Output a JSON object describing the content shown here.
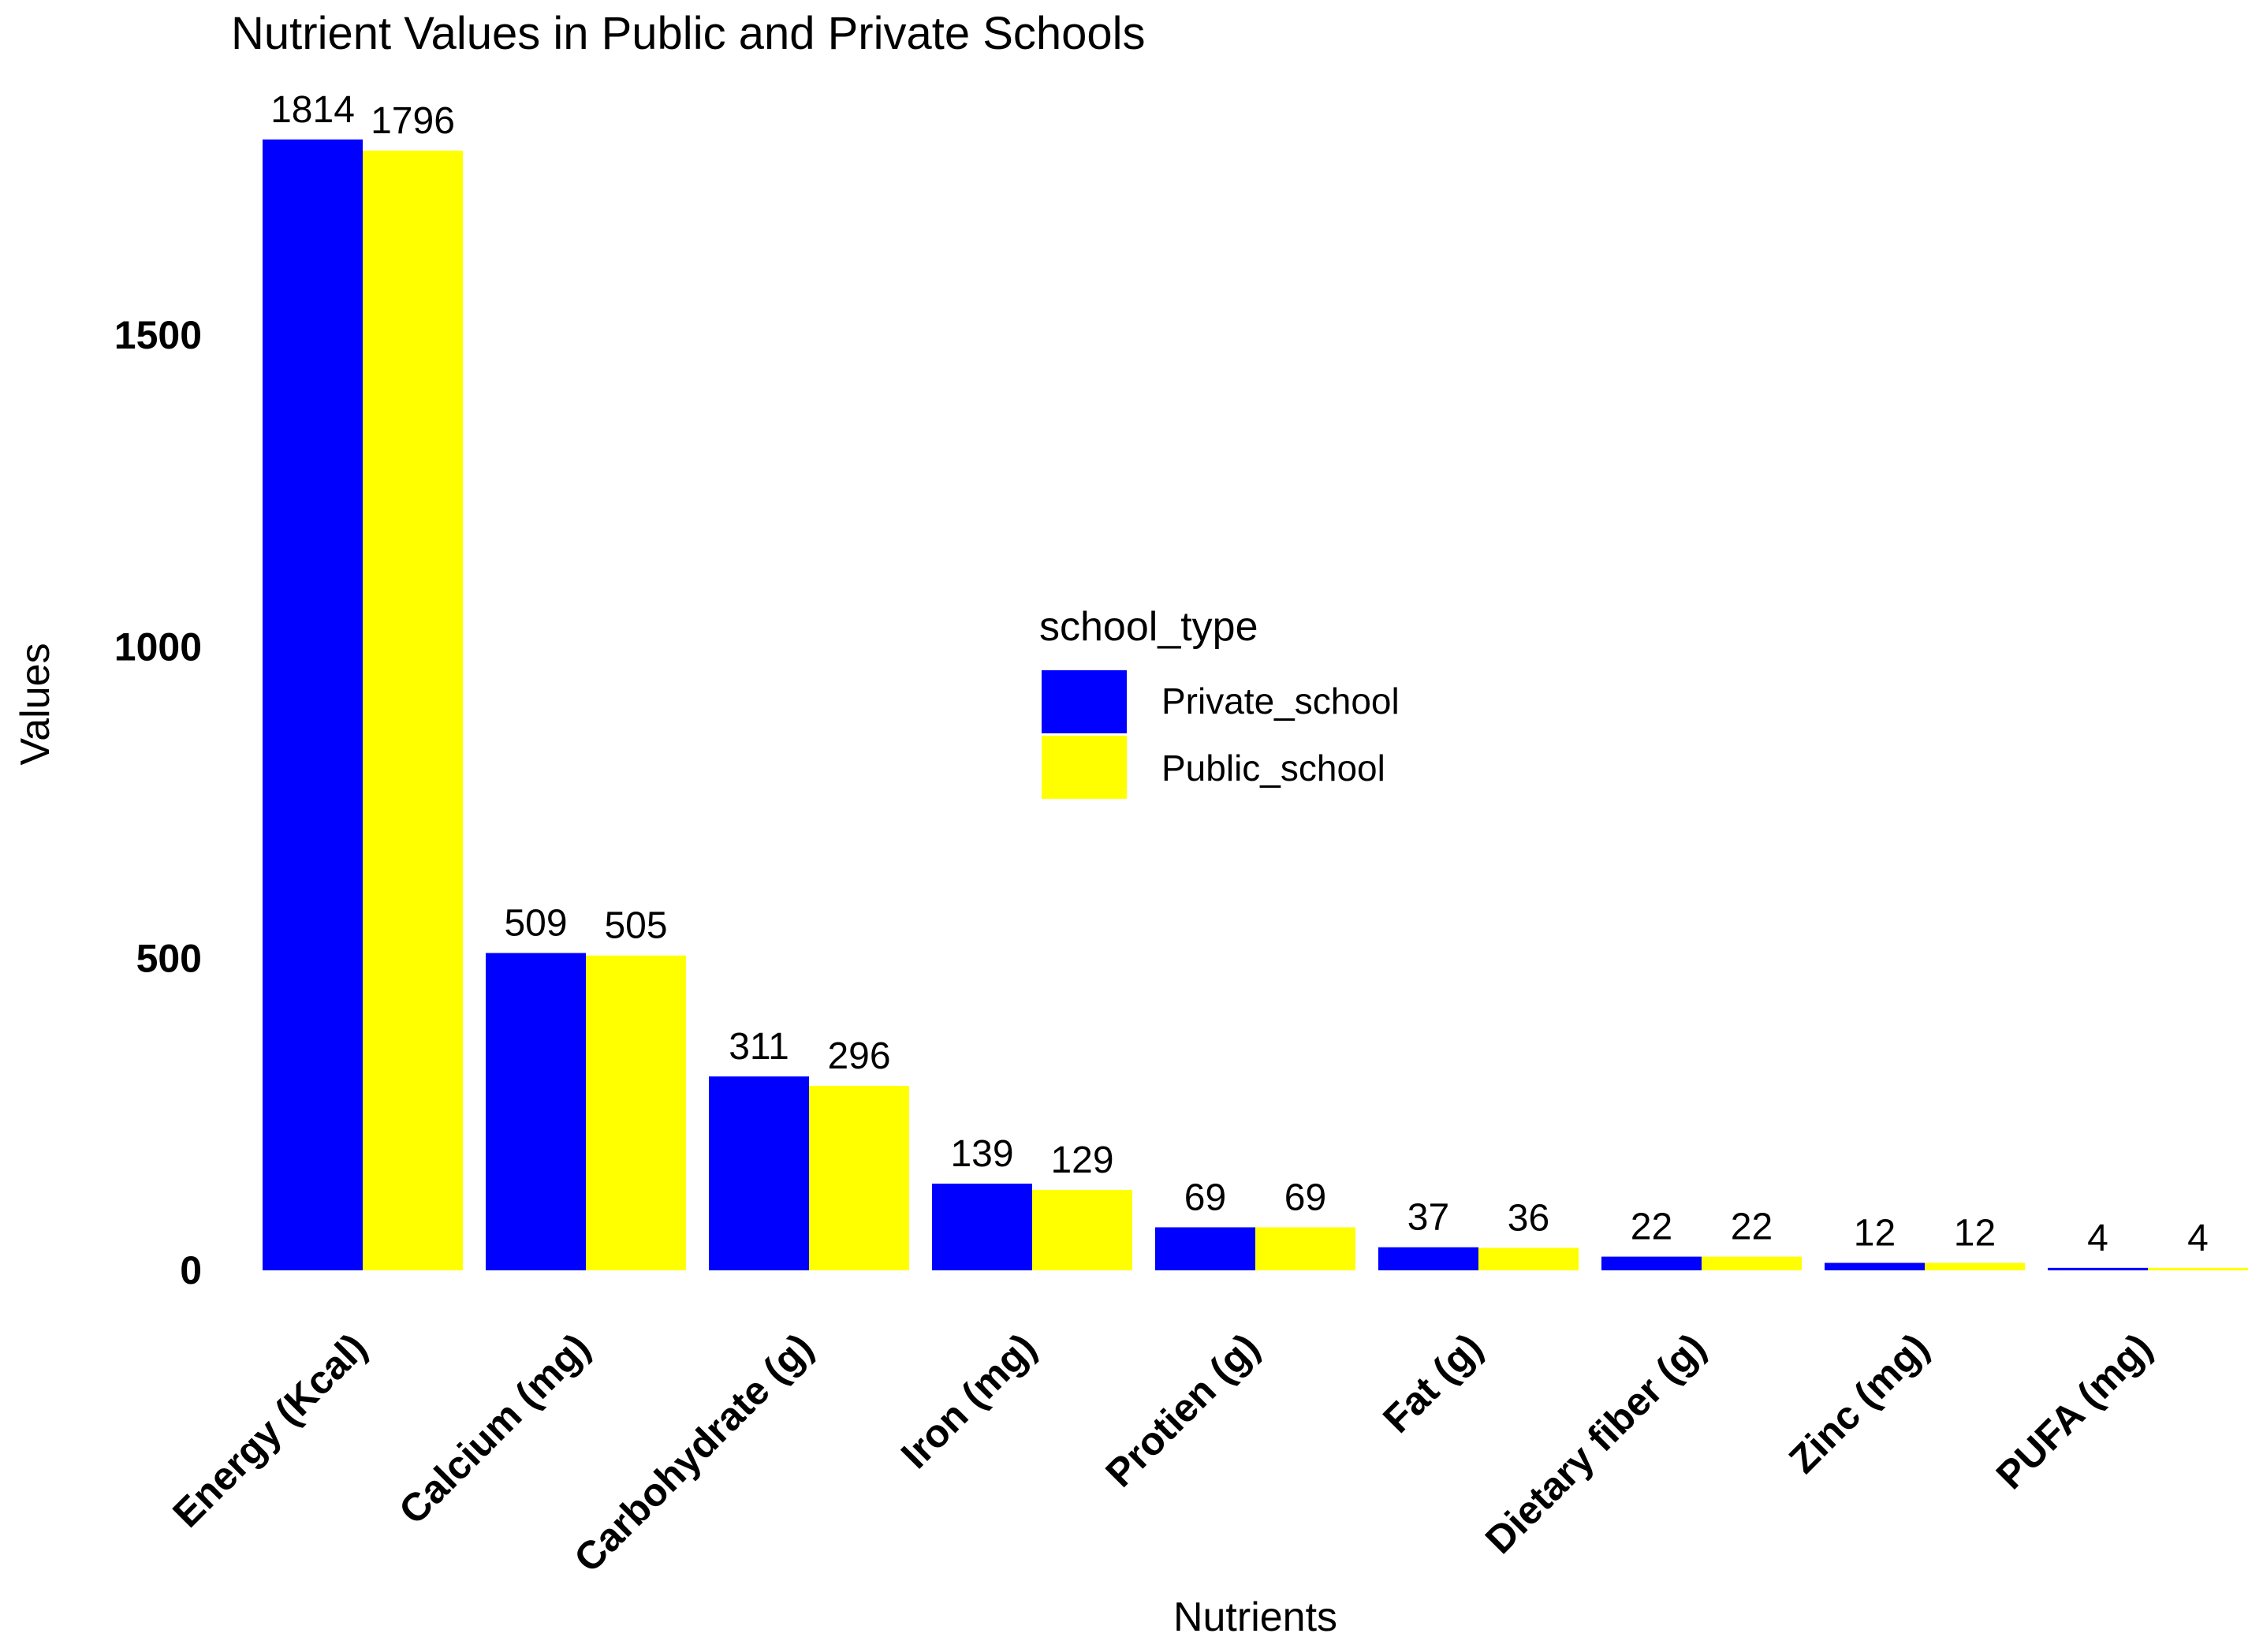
{
  "chart_data": {
    "type": "bar",
    "title": "Nutrient Values in Public and Private Schools",
    "xlabel": "Nutrients",
    "ylabel": "Values",
    "ylim": [
      0,
      1820
    ],
    "yticks": [
      0,
      500,
      1000,
      1500
    ],
    "grid": false,
    "categories": [
      "Energy (Kcal)",
      "Calcium (mg)",
      "Carbohydrate (g)",
      "Iron (mg)",
      "Protien (g)",
      "Fat (g)",
      "Dietary fiber (g)",
      "Zinc (mg)",
      "PUFA (mg)"
    ],
    "legend": {
      "title": "school_type",
      "placement": "center-right"
    },
    "series": [
      {
        "name": "Private_school",
        "color": "#0000FF",
        "values": [
          1814,
          509,
          311,
          139,
          69,
          37,
          22,
          12,
          4
        ]
      },
      {
        "name": "Public_school",
        "color": "#FFFF00",
        "values": [
          1796,
          505,
          296,
          129,
          69,
          36,
          22,
          12,
          4
        ]
      }
    ]
  }
}
